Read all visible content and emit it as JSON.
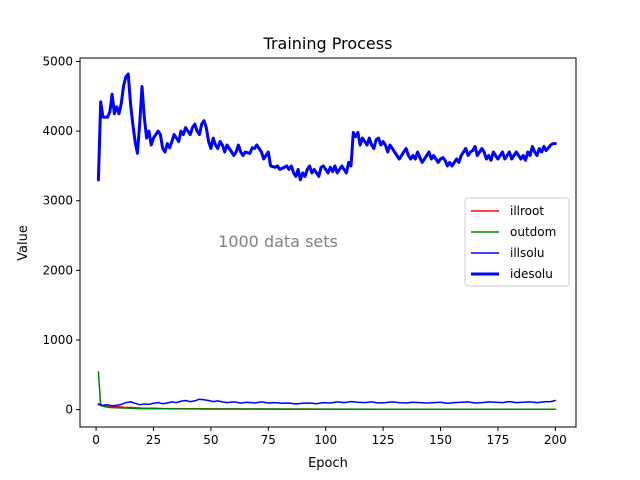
{
  "chart_data": {
    "type": "line",
    "title": "Training Process",
    "xlabel": "Epoch",
    "ylabel": "Value",
    "annotation": "1000 data sets",
    "xlim": [
      -7,
      209
    ],
    "ylim": [
      -250,
      5050
    ],
    "x_ticks": [
      0,
      25,
      50,
      75,
      100,
      125,
      150,
      175,
      200
    ],
    "y_ticks": [
      0,
      1000,
      2000,
      3000,
      4000,
      5000
    ],
    "grid": false,
    "legend_position": "center-right",
    "series": [
      {
        "name": "illroot",
        "color": "#ff0000",
        "width": "normal",
        "points": [
          [
            1,
            70
          ],
          [
            3,
            55
          ],
          [
            5,
            45
          ],
          [
            8,
            38
          ],
          [
            10,
            40
          ],
          [
            12,
            35
          ],
          [
            15,
            30
          ],
          [
            20,
            22
          ],
          [
            25,
            18
          ],
          [
            30,
            15
          ],
          [
            40,
            12
          ],
          [
            50,
            10
          ],
          [
            60,
            9
          ],
          [
            70,
            8
          ],
          [
            80,
            7
          ],
          [
            90,
            7
          ],
          [
            100,
            6
          ],
          [
            125,
            5
          ],
          [
            150,
            5
          ],
          [
            175,
            5
          ],
          [
            200,
            5
          ]
        ]
      },
      {
        "name": "outdom",
        "color": "#008000",
        "width": "normal",
        "points": [
          [
            1,
            540
          ],
          [
            2,
            60
          ],
          [
            4,
            40
          ],
          [
            6,
            30
          ],
          [
            10,
            25
          ],
          [
            15,
            20
          ],
          [
            20,
            15
          ],
          [
            30,
            12
          ],
          [
            40,
            10
          ],
          [
            50,
            9
          ],
          [
            75,
            8
          ],
          [
            100,
            7
          ],
          [
            125,
            6
          ],
          [
            150,
            6
          ],
          [
            175,
            6
          ],
          [
            200,
            6
          ]
        ]
      },
      {
        "name": "illsolu",
        "color": "#0000ff",
        "width": "normal",
        "points": [
          [
            1,
            80
          ],
          [
            3,
            60
          ],
          [
            5,
            70
          ],
          [
            7,
            55
          ],
          [
            9,
            60
          ],
          [
            11,
            75
          ],
          [
            13,
            100
          ],
          [
            15,
            110
          ],
          [
            17,
            90
          ],
          [
            19,
            70
          ],
          [
            21,
            80
          ],
          [
            23,
            75
          ],
          [
            25,
            90
          ],
          [
            27,
            100
          ],
          [
            29,
            85
          ],
          [
            31,
            95
          ],
          [
            33,
            110
          ],
          [
            35,
            100
          ],
          [
            37,
            120
          ],
          [
            39,
            130
          ],
          [
            41,
            115
          ],
          [
            43,
            125
          ],
          [
            45,
            150
          ],
          [
            47,
            140
          ],
          [
            49,
            130
          ],
          [
            51,
            115
          ],
          [
            53,
            125
          ],
          [
            55,
            110
          ],
          [
            57,
            100
          ],
          [
            60,
            110
          ],
          [
            63,
            95
          ],
          [
            66,
            105
          ],
          [
            69,
            95
          ],
          [
            72,
            110
          ],
          [
            75,
            95
          ],
          [
            78,
            100
          ],
          [
            81,
            90
          ],
          [
            84,
            95
          ],
          [
            87,
            80
          ],
          [
            90,
            90
          ],
          [
            93,
            95
          ],
          [
            96,
            85
          ],
          [
            99,
            100
          ],
          [
            102,
            95
          ],
          [
            105,
            110
          ],
          [
            108,
            100
          ],
          [
            111,
            115
          ],
          [
            114,
            105
          ],
          [
            117,
            100
          ],
          [
            120,
            110
          ],
          [
            123,
            95
          ],
          [
            126,
            100
          ],
          [
            129,
            110
          ],
          [
            132,
            100
          ],
          [
            135,
            95
          ],
          [
            138,
            105
          ],
          [
            141,
            100
          ],
          [
            144,
            95
          ],
          [
            147,
            100
          ],
          [
            150,
            105
          ],
          [
            153,
            90
          ],
          [
            156,
            100
          ],
          [
            159,
            105
          ],
          [
            162,
            110
          ],
          [
            165,
            95
          ],
          [
            168,
            100
          ],
          [
            171,
            110
          ],
          [
            174,
            105
          ],
          [
            177,
            100
          ],
          [
            180,
            115
          ],
          [
            183,
            100
          ],
          [
            186,
            105
          ],
          [
            189,
            110
          ],
          [
            192,
            100
          ],
          [
            195,
            110
          ],
          [
            198,
            115
          ],
          [
            200,
            130
          ]
        ]
      },
      {
        "name": "idesolu",
        "color": "#0000ff",
        "width": "bold",
        "points": [
          [
            1,
            3300
          ],
          [
            2,
            4420
          ],
          [
            3,
            4200
          ],
          [
            5,
            4200
          ],
          [
            6,
            4280
          ],
          [
            7,
            4530
          ],
          [
            8,
            4250
          ],
          [
            9,
            4350
          ],
          [
            10,
            4250
          ],
          [
            11,
            4400
          ],
          [
            12,
            4650
          ],
          [
            13,
            4780
          ],
          [
            14,
            4820
          ],
          [
            15,
            4400
          ],
          [
            16,
            4100
          ],
          [
            17,
            3850
          ],
          [
            18,
            3680
          ],
          [
            19,
            4100
          ],
          [
            20,
            4640
          ],
          [
            21,
            4200
          ],
          [
            22,
            3900
          ],
          [
            23,
            4000
          ],
          [
            24,
            3800
          ],
          [
            25,
            3900
          ],
          [
            27,
            4000
          ],
          [
            28,
            3950
          ],
          [
            29,
            3750
          ],
          [
            30,
            3700
          ],
          [
            31,
            3820
          ],
          [
            32,
            3760
          ],
          [
            33,
            3850
          ],
          [
            34,
            3950
          ],
          [
            35,
            3900
          ],
          [
            36,
            3850
          ],
          [
            37,
            4000
          ],
          [
            38,
            3950
          ],
          [
            39,
            4050
          ],
          [
            40,
            4000
          ],
          [
            41,
            3950
          ],
          [
            42,
            4050
          ],
          [
            43,
            4100
          ],
          [
            44,
            4000
          ],
          [
            45,
            3950
          ],
          [
            46,
            4100
          ],
          [
            47,
            4150
          ],
          [
            48,
            4050
          ],
          [
            49,
            3850
          ],
          [
            50,
            3750
          ],
          [
            51,
            3900
          ],
          [
            52,
            3800
          ],
          [
            53,
            3750
          ],
          [
            54,
            3850
          ],
          [
            55,
            3800
          ],
          [
            56,
            3700
          ],
          [
            57,
            3800
          ],
          [
            58,
            3750
          ],
          [
            59,
            3700
          ],
          [
            60,
            3650
          ],
          [
            61,
            3700
          ],
          [
            62,
            3800
          ],
          [
            63,
            3700
          ],
          [
            64,
            3650
          ],
          [
            65,
            3700
          ],
          [
            67,
            3680
          ],
          [
            68,
            3760
          ],
          [
            69,
            3750
          ],
          [
            70,
            3800
          ],
          [
            71,
            3750
          ],
          [
            72,
            3700
          ],
          [
            73,
            3600
          ],
          [
            74,
            3650
          ],
          [
            75,
            3700
          ],
          [
            76,
            3500
          ],
          [
            78,
            3480
          ],
          [
            79,
            3500
          ],
          [
            80,
            3450
          ],
          [
            82,
            3480
          ],
          [
            83,
            3500
          ],
          [
            84,
            3450
          ],
          [
            85,
            3500
          ],
          [
            86,
            3400
          ],
          [
            87,
            3350
          ],
          [
            88,
            3450
          ],
          [
            89,
            3300
          ],
          [
            90,
            3400
          ],
          [
            91,
            3350
          ],
          [
            92,
            3450
          ],
          [
            93,
            3500
          ],
          [
            94,
            3400
          ],
          [
            95,
            3450
          ],
          [
            96,
            3400
          ],
          [
            97,
            3350
          ],
          [
            98,
            3480
          ],
          [
            99,
            3500
          ],
          [
            100,
            3450
          ],
          [
            101,
            3400
          ],
          [
            102,
            3480
          ],
          [
            103,
            3420
          ],
          [
            104,
            3500
          ],
          [
            105,
            3400
          ],
          [
            106,
            3450
          ],
          [
            107,
            3500
          ],
          [
            108,
            3450
          ],
          [
            109,
            3400
          ],
          [
            110,
            3550
          ],
          [
            111,
            3500
          ],
          [
            112,
            3980
          ],
          [
            113,
            3920
          ],
          [
            114,
            3980
          ],
          [
            115,
            3800
          ],
          [
            116,
            3900
          ],
          [
            117,
            3850
          ],
          [
            118,
            3800
          ],
          [
            119,
            3900
          ],
          [
            120,
            3800
          ],
          [
            121,
            3750
          ],
          [
            122,
            3880
          ],
          [
            123,
            3900
          ],
          [
            124,
            3800
          ],
          [
            125,
            3850
          ],
          [
            126,
            3800
          ],
          [
            127,
            3700
          ],
          [
            128,
            3800
          ],
          [
            129,
            3750
          ],
          [
            130,
            3700
          ],
          [
            131,
            3650
          ],
          [
            132,
            3600
          ],
          [
            133,
            3650
          ],
          [
            134,
            3700
          ],
          [
            135,
            3750
          ],
          [
            136,
            3650
          ],
          [
            137,
            3600
          ],
          [
            138,
            3650
          ],
          [
            139,
            3600
          ],
          [
            140,
            3700
          ],
          [
            141,
            3620
          ],
          [
            142,
            3550
          ],
          [
            143,
            3600
          ],
          [
            144,
            3650
          ],
          [
            145,
            3700
          ],
          [
            146,
            3600
          ],
          [
            147,
            3650
          ],
          [
            148,
            3600
          ],
          [
            149,
            3550
          ],
          [
            150,
            3600
          ],
          [
            151,
            3620
          ],
          [
            152,
            3580
          ],
          [
            153,
            3500
          ],
          [
            154,
            3550
          ],
          [
            155,
            3500
          ],
          [
            156,
            3550
          ],
          [
            157,
            3600
          ],
          [
            158,
            3550
          ],
          [
            159,
            3650
          ],
          [
            160,
            3700
          ],
          [
            161,
            3750
          ],
          [
            162,
            3650
          ],
          [
            163,
            3700
          ],
          [
            164,
            3720
          ],
          [
            165,
            3780
          ],
          [
            166,
            3650
          ],
          [
            167,
            3700
          ],
          [
            168,
            3750
          ],
          [
            169,
            3700
          ],
          [
            170,
            3600
          ],
          [
            171,
            3650
          ],
          [
            172,
            3580
          ],
          [
            173,
            3700
          ],
          [
            174,
            3650
          ],
          [
            175,
            3600
          ],
          [
            176,
            3650
          ],
          [
            177,
            3700
          ],
          [
            178,
            3600
          ],
          [
            179,
            3650
          ],
          [
            180,
            3700
          ],
          [
            181,
            3600
          ],
          [
            182,
            3650
          ],
          [
            183,
            3700
          ],
          [
            184,
            3650
          ],
          [
            185,
            3600
          ],
          [
            186,
            3650
          ],
          [
            187,
            3580
          ],
          [
            188,
            3700
          ],
          [
            189,
            3650
          ],
          [
            190,
            3780
          ],
          [
            191,
            3700
          ],
          [
            192,
            3650
          ],
          [
            193,
            3750
          ],
          [
            194,
            3700
          ],
          [
            195,
            3780
          ],
          [
            196,
            3720
          ],
          [
            197,
            3760
          ],
          [
            198,
            3800
          ],
          [
            199,
            3820
          ],
          [
            200,
            3820
          ]
        ]
      }
    ]
  }
}
